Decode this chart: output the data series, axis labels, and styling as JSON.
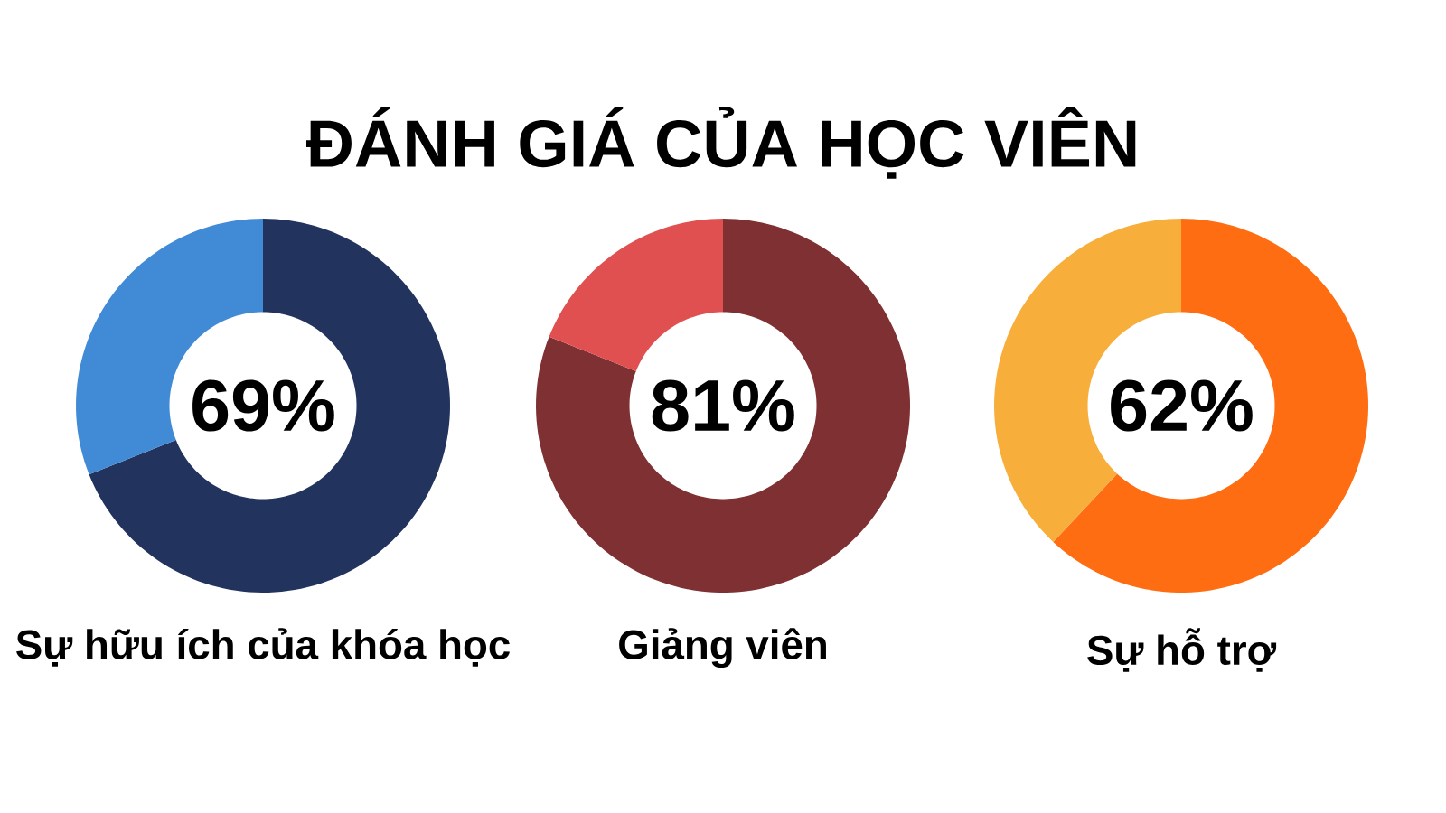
{
  "chart_data": [
    {
      "type": "donut",
      "title": "ĐÁNH GIÁ CỦA HỌC VIÊN",
      "xlabel": "Sự hữu ích của khóa học",
      "categories": [
        null,
        null
      ],
      "values": [
        69,
        31
      ],
      "colors": [
        "#22345e",
        "#418bd6"
      ],
      "value_labels": [
        "69%",
        null
      ]
    },
    {
      "type": "donut",
      "xlabel": "Giảng viên",
      "categories": [
        null,
        null
      ],
      "values": [
        81,
        19
      ],
      "colors": [
        "#7e3032",
        "#e05050"
      ],
      "value_labels": [
        "81%",
        null
      ]
    },
    {
      "type": "donut",
      "xlabel": "Sự hỗ trợ",
      "categories": [
        null,
        null
      ],
      "values": [
        62,
        38
      ],
      "colors": [
        "#ff6d12",
        "#f7ae3b"
      ],
      "value_labels": [
        "62%",
        null
      ]
    }
  ]
}
